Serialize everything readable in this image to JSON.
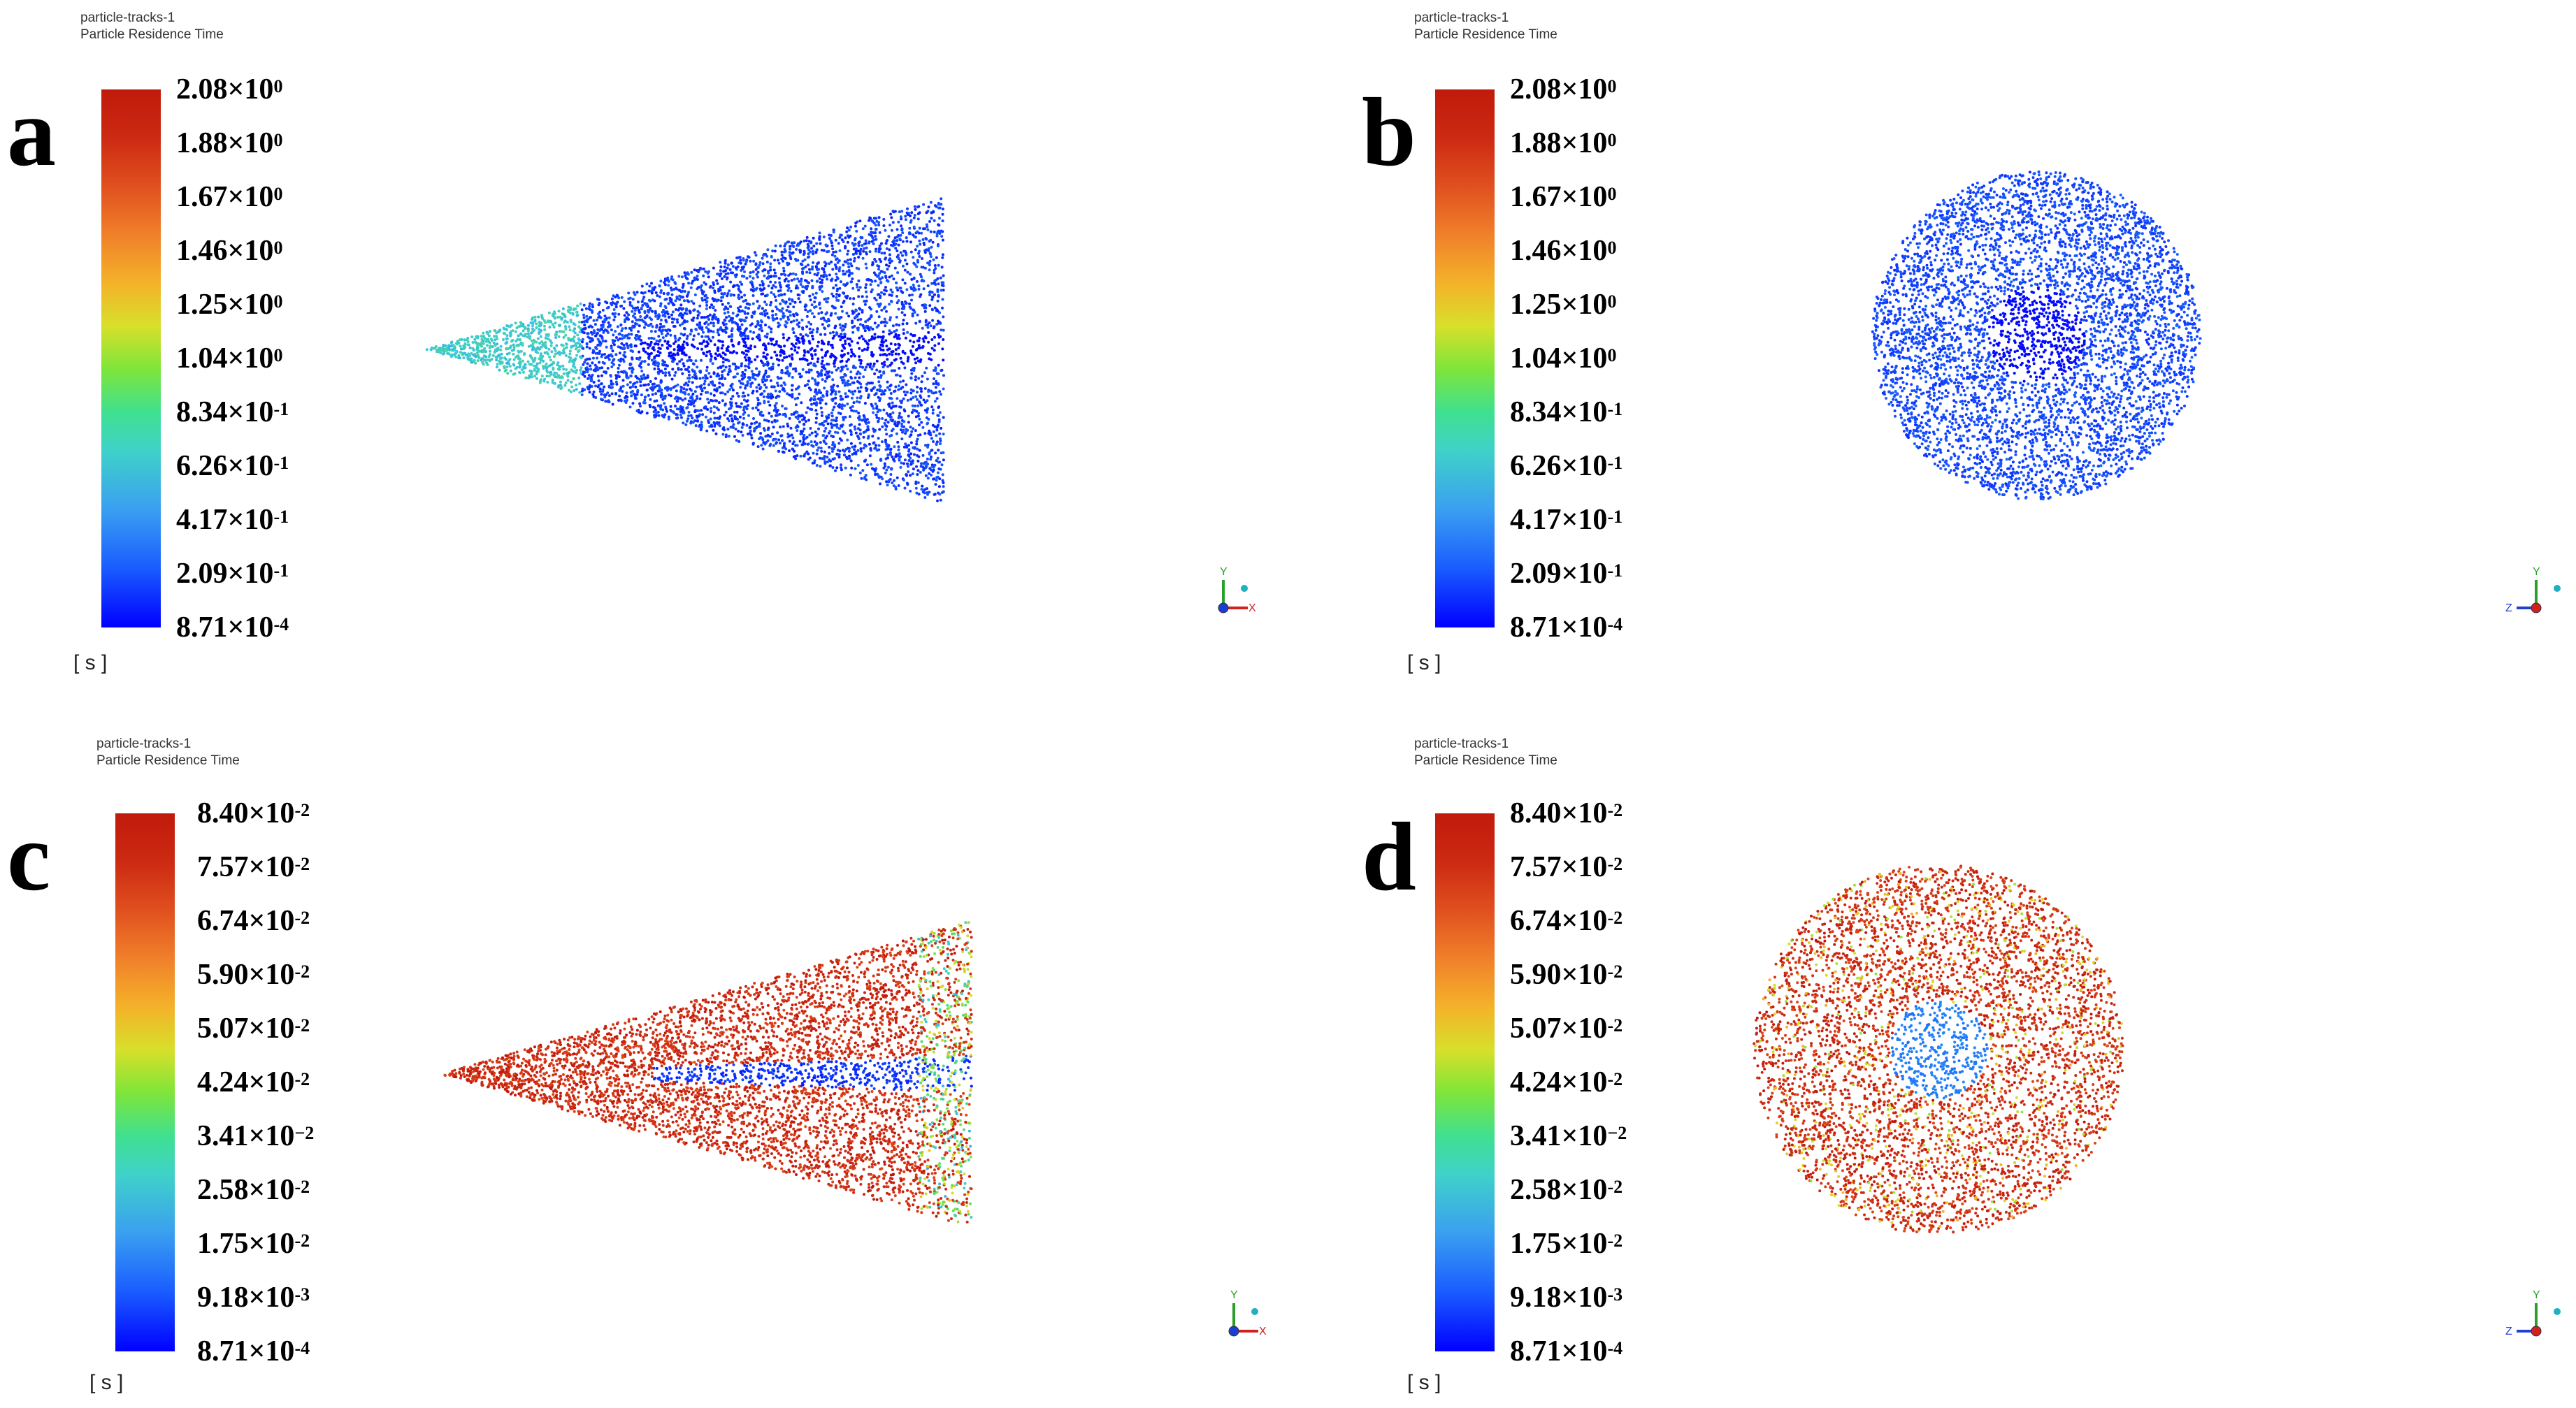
{
  "panels": [
    {
      "letter": "a",
      "title_line1": "particle-tracks-1",
      "title_line2": "Particle Residence Time",
      "unit": "[ s ]",
      "ticks": [
        {
          "mantissa": "2.08",
          "exp": "0"
        },
        {
          "mantissa": "1.88",
          "exp": "0"
        },
        {
          "mantissa": "1.67",
          "exp": "0"
        },
        {
          "mantissa": "1.46",
          "exp": "0"
        },
        {
          "mantissa": "1.25",
          "exp": "0"
        },
        {
          "mantissa": "1.04",
          "exp": "0"
        },
        {
          "mantissa": "8.34",
          "exp": "-1"
        },
        {
          "mantissa": "6.26",
          "exp": "-1"
        },
        {
          "mantissa": "4.17",
          "exp": "-1"
        },
        {
          "mantissa": "2.09",
          "exp": "-1"
        },
        {
          "mantissa": "8.71",
          "exp": "-4"
        }
      ],
      "view": "side",
      "scheme": "blue",
      "axis_labels": {
        "y": "Y",
        "h": "X"
      }
    },
    {
      "letter": "b",
      "title_line1": "particle-tracks-1",
      "title_line2": "Particle Residence Time",
      "unit": "[ s ]",
      "ticks": [
        {
          "mantissa": "2.08",
          "exp": "0"
        },
        {
          "mantissa": "1.88",
          "exp": "0"
        },
        {
          "mantissa": "1.67",
          "exp": "0"
        },
        {
          "mantissa": "1.46",
          "exp": "0"
        },
        {
          "mantissa": "1.25",
          "exp": "0"
        },
        {
          "mantissa": "1.04",
          "exp": "0"
        },
        {
          "mantissa": "8.34",
          "exp": "-1"
        },
        {
          "mantissa": "6.26",
          "exp": "-1"
        },
        {
          "mantissa": "4.17",
          "exp": "-1"
        },
        {
          "mantissa": "2.09",
          "exp": "-1"
        },
        {
          "mantissa": "8.71",
          "exp": "-4"
        }
      ],
      "view": "front",
      "scheme": "blue",
      "axis_labels": {
        "y": "Y",
        "h": "Z"
      }
    },
    {
      "letter": "c",
      "title_line1": "particle-tracks-1",
      "title_line2": "Particle Residence Time",
      "unit": "[ s ]",
      "ticks": [
        {
          "mantissa": "8.40",
          "exp": "-2"
        },
        {
          "mantissa": "7.57",
          "exp": "-2"
        },
        {
          "mantissa": "6.74",
          "exp": "-2"
        },
        {
          "mantissa": "5.90",
          "exp": "-2"
        },
        {
          "mantissa": "5.07",
          "exp": "-2"
        },
        {
          "mantissa": "4.24",
          "exp": "-2"
        },
        {
          "mantissa": "3.41",
          "exp": "−2"
        },
        {
          "mantissa": "2.58",
          "exp": "-2"
        },
        {
          "mantissa": "1.75",
          "exp": "-2"
        },
        {
          "mantissa": "9.18",
          "exp": "-3"
        },
        {
          "mantissa": "8.71",
          "exp": "-4"
        }
      ],
      "view": "side",
      "scheme": "red",
      "axis_labels": {
        "y": "Y",
        "h": "X"
      }
    },
    {
      "letter": "d",
      "title_line1": "particle-tracks-1",
      "title_line2": "Particle Residence Time",
      "unit": "[ s ]",
      "ticks": [
        {
          "mantissa": "8.40",
          "exp": "-2"
        },
        {
          "mantissa": "7.57",
          "exp": "-2"
        },
        {
          "mantissa": "6.74",
          "exp": "-2"
        },
        {
          "mantissa": "5.90",
          "exp": "-2"
        },
        {
          "mantissa": "5.07",
          "exp": "-2"
        },
        {
          "mantissa": "4.24",
          "exp": "-2"
        },
        {
          "mantissa": "3.41",
          "exp": "−2"
        },
        {
          "mantissa": "2.58",
          "exp": "-2"
        },
        {
          "mantissa": "1.75",
          "exp": "-2"
        },
        {
          "mantissa": "9.18",
          "exp": "-3"
        },
        {
          "mantissa": "8.71",
          "exp": "-4"
        }
      ],
      "view": "front",
      "scheme": "red",
      "axis_labels": {
        "y": "Y",
        "h": "Z"
      }
    }
  ],
  "times_sign": "×10"
}
